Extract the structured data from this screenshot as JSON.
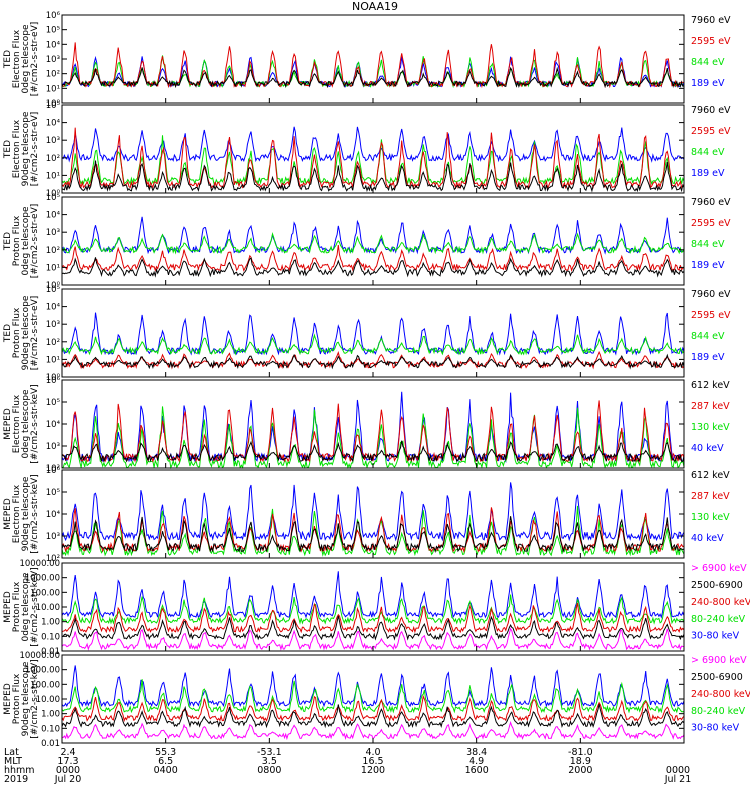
{
  "title": "NOAA19",
  "colors": {
    "black": "#000000",
    "red": "#e00000",
    "green": "#00e000",
    "blue": "#0000ff",
    "magenta": "#ff00ff"
  },
  "chart_data": [
    {
      "type": "line",
      "ylabel": [
        "TED",
        "Electron Flux",
        "0deg telescope",
        "[#/cm2-s-str-eV]"
      ],
      "yscale": "log",
      "ylim": [
        1,
        1000000
      ],
      "ytick_labels": [
        "10⁰",
        "10¹",
        "10²",
        "10³",
        "10⁴",
        "10⁵",
        "10⁶"
      ],
      "ytick_values": [
        1,
        10,
        100,
        1000,
        10000,
        100000,
        1000000
      ],
      "series": [
        {
          "name": "7960 eV",
          "color": "black",
          "baseline": 20,
          "peak": 300
        },
        {
          "name": "2595 eV",
          "color": "red",
          "baseline": 20,
          "peak": 30000
        },
        {
          "name": "844 eV",
          "color": "green",
          "baseline": 20,
          "peak": 3000
        },
        {
          "name": "189 eV",
          "color": "blue",
          "baseline": 20,
          "peak": 3000
        }
      ]
    },
    {
      "type": "line",
      "ylabel": [
        "TED",
        "Electron Flux",
        "90deg telescope",
        "[#/cm2-s-str-eV]"
      ],
      "yscale": "log",
      "ylim": [
        1,
        100000
      ],
      "ytick_labels": [
        "10⁰",
        "10¹",
        "10²",
        "10³",
        "10⁴",
        "10⁵"
      ],
      "ytick_values": [
        1,
        10,
        100,
        1000,
        10000,
        100000
      ],
      "series": [
        {
          "name": "7960 eV",
          "color": "black",
          "baseline": 2,
          "peak": 100
        },
        {
          "name": "2595 eV",
          "color": "red",
          "baseline": 3,
          "peak": 10000
        },
        {
          "name": "844 eV",
          "color": "green",
          "baseline": 5,
          "peak": 3000
        },
        {
          "name": "189 eV",
          "color": "blue",
          "baseline": 100,
          "peak": 10000
        }
      ]
    },
    {
      "type": "line",
      "ylabel": [
        "TED",
        "Proton Flux",
        "0deg telescope",
        "[#/cm2-s-str-eV]"
      ],
      "yscale": "log",
      "ylim": [
        1,
        100000
      ],
      "ytick_labels": [
        "10⁰",
        "10¹",
        "10²",
        "10³",
        "10⁴",
        "10⁵"
      ],
      "ytick_values": [
        1,
        10,
        100,
        1000,
        10000,
        100000
      ],
      "series": [
        {
          "name": "7960 eV",
          "color": "black",
          "baseline": 5,
          "peak": 50
        },
        {
          "name": "2595 eV",
          "color": "red",
          "baseline": 10,
          "peak": 200
        },
        {
          "name": "844 eV",
          "color": "green",
          "baseline": 100,
          "peak": 1000
        },
        {
          "name": "189 eV",
          "color": "blue",
          "baseline": 100,
          "peak": 10000
        }
      ]
    },
    {
      "type": "line",
      "ylabel": [
        "TED",
        "Proton Flux",
        "90deg telescope",
        "[#/cm2-s-str-eV]"
      ],
      "yscale": "log",
      "ylim": [
        1,
        100000
      ],
      "ytick_labels": [
        "10⁰",
        "10¹",
        "10²",
        "10³",
        "10⁴",
        "10⁵"
      ],
      "ytick_values": [
        1,
        10,
        100,
        1000,
        10000,
        100000
      ],
      "series": [
        {
          "name": "7960 eV",
          "color": "black",
          "baseline": 5,
          "peak": 20
        },
        {
          "name": "2595 eV",
          "color": "red",
          "baseline": 5,
          "peak": 30
        },
        {
          "name": "844 eV",
          "color": "green",
          "baseline": 30,
          "peak": 300
        },
        {
          "name": "189 eV",
          "color": "blue",
          "baseline": 30,
          "peak": 10000
        }
      ]
    },
    {
      "type": "line",
      "ylabel": [
        "MEPED",
        "Electron Flux",
        "0deg telescope",
        "[#/cm2-s-str-keV]"
      ],
      "yscale": "log",
      "ylim": [
        100,
        1000000
      ],
      "ytick_labels": [
        "10²",
        "10³",
        "10⁴",
        "10⁵",
        "10⁶"
      ],
      "ytick_values": [
        100,
        1000,
        10000,
        100000,
        1000000
      ],
      "series": [
        {
          "name": "612 keV",
          "color": "black",
          "baseline": 300,
          "peak": 2000
        },
        {
          "name": "287 keV",
          "color": "red",
          "baseline": 300,
          "peak": 200000
        },
        {
          "name": "130 keV",
          "color": "green",
          "baseline": 150,
          "peak": 100000
        },
        {
          "name": "40 keV",
          "color": "blue",
          "baseline": 300,
          "peak": 500000
        }
      ]
    },
    {
      "type": "line",
      "ylabel": [
        "MEPED",
        "Electron Flux",
        "90deg telescope",
        "[#/cm2-s-str-keV]"
      ],
      "yscale": "log",
      "ylim": [
        100,
        1000000
      ],
      "ytick_labels": [
        "10²",
        "10³",
        "10⁴",
        "10⁵",
        "10⁶"
      ],
      "ytick_values": [
        100,
        1000,
        10000,
        100000,
        1000000
      ],
      "series": [
        {
          "name": "612 keV",
          "color": "black",
          "baseline": 300,
          "peak": 10000
        },
        {
          "name": "287 keV",
          "color": "red",
          "baseline": 300,
          "peak": 30000
        },
        {
          "name": "130 keV",
          "color": "green",
          "baseline": 200,
          "peak": 30000
        },
        {
          "name": "40 keV",
          "color": "blue",
          "baseline": 1000,
          "peak": 500000
        }
      ]
    },
    {
      "type": "line",
      "ylabel": [
        "MEPED",
        "Proton Flux",
        "0deg telescope",
        "[#/cm2-s-str-keV]"
      ],
      "yscale": "log",
      "ylim": [
        0.01,
        10000
      ],
      "ytick_labels": [
        "0.01",
        "0.10",
        "1.00",
        "10.00",
        "100.00",
        "1000.00",
        "10000.00"
      ],
      "ytick_values": [
        0.01,
        0.1,
        1,
        10,
        100,
        1000,
        10000
      ],
      "series": [
        {
          "name": "> 6900 keV",
          "color": "magenta",
          "baseline": 0.02,
          "peak": 0.5
        },
        {
          "name": "2500-6900",
          "color": "black",
          "baseline": 0.1,
          "peak": 3
        },
        {
          "name": "240-800 keV",
          "color": "red",
          "baseline": 0.3,
          "peak": 30
        },
        {
          "name": "80-240 keV",
          "color": "green",
          "baseline": 1.2,
          "peak": 100
        },
        {
          "name": "30-80 keV",
          "color": "blue",
          "baseline": 3,
          "peak": 3000
        }
      ]
    },
    {
      "type": "line",
      "ylabel": [
        "MEPED",
        "Proton Flux",
        "90deg telescope",
        "[#/cm2-s-str-keV]"
      ],
      "yscale": "log",
      "ylim": [
        0.01,
        10000
      ],
      "ytick_labels": [
        "0.01",
        "0.10",
        "1.00",
        "10.00",
        "100.00",
        "1000.00",
        "10000.00"
      ],
      "ytick_values": [
        0.01,
        0.1,
        1,
        10,
        100,
        1000,
        10000
      ],
      "series": [
        {
          "name": "> 6900 keV",
          "color": "magenta",
          "baseline": 0.03,
          "peak": 0.3
        },
        {
          "name": "2500-6900",
          "color": "black",
          "baseline": 0.2,
          "peak": 5
        },
        {
          "name": "240-800 keV",
          "color": "red",
          "baseline": 0.5,
          "peak": 30
        },
        {
          "name": "80-240 keV",
          "color": "green",
          "baseline": 2,
          "peak": 300
        },
        {
          "name": "30-80 keV",
          "color": "blue",
          "baseline": 5,
          "peak": 3000
        }
      ]
    }
  ],
  "x_axis": {
    "type": "time",
    "range": [
      "2019-07-20 00:00",
      "2019-07-21 00:00"
    ],
    "row_labels": [
      "Lat",
      "MLT",
      "hhmm",
      "2019"
    ],
    "ticks": [
      {
        "time": "0000",
        "lat": "2.4",
        "mlt": "17.3",
        "date": "Jul 20"
      },
      {
        "time": "0400",
        "lat": "55.3",
        "mlt": "6.5",
        "date": ""
      },
      {
        "time": "0800",
        "lat": "-53.1",
        "mlt": "3.5",
        "date": ""
      },
      {
        "time": "1200",
        "lat": "4.0",
        "mlt": "16.5",
        "date": ""
      },
      {
        "time": "1600",
        "lat": "38.4",
        "mlt": "4.9",
        "date": ""
      },
      {
        "time": "2000",
        "lat": "-81.0",
        "mlt": "18.9",
        "date": ""
      },
      {
        "time": "0000",
        "lat": "",
        "mlt": "",
        "date": "Jul 21"
      }
    ]
  }
}
